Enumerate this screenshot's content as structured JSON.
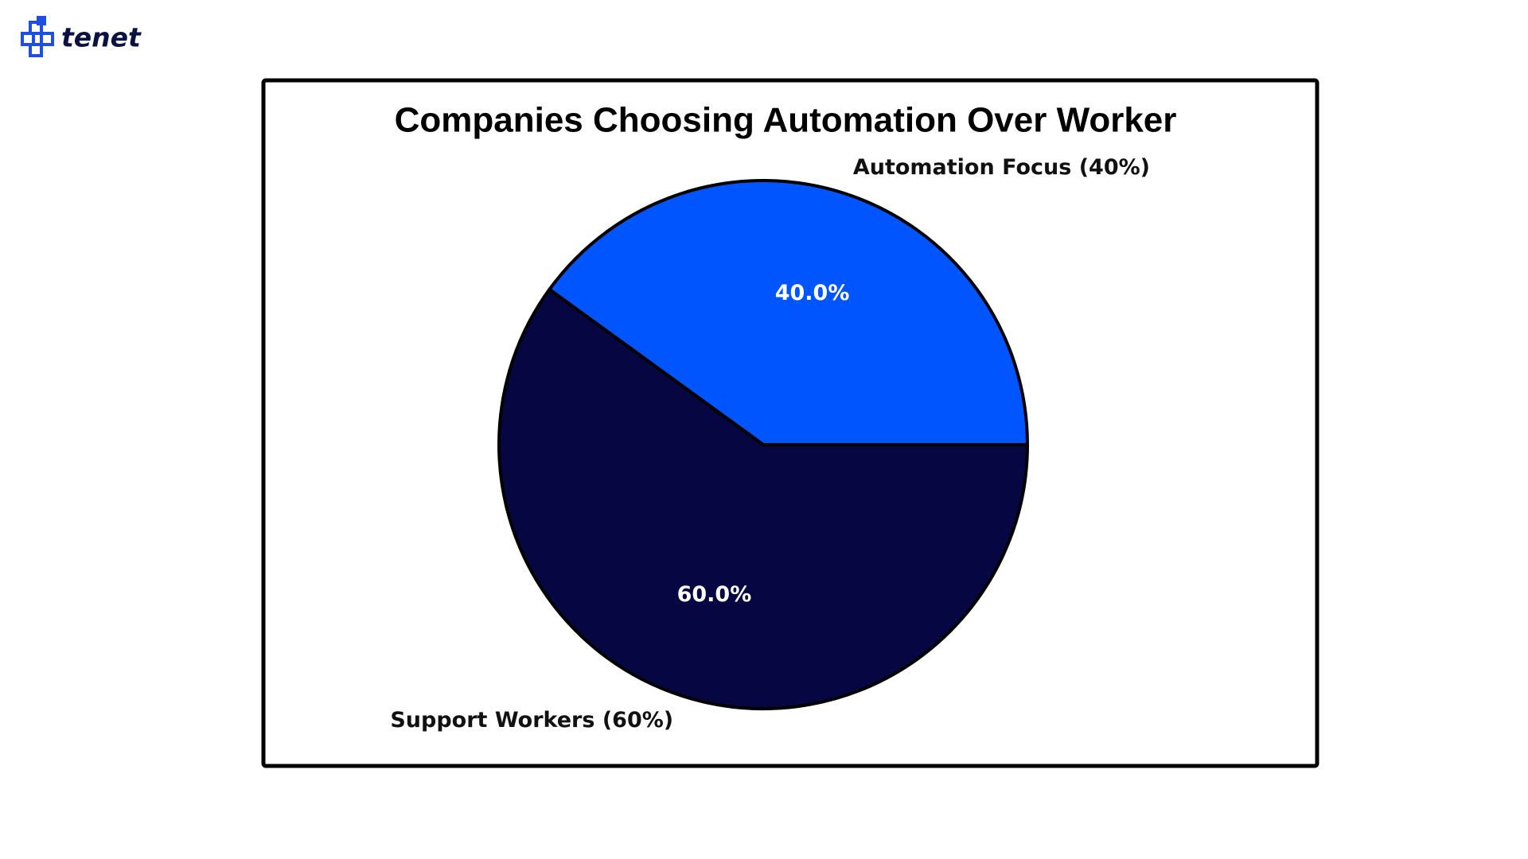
{
  "brand": "tenet",
  "chart_data": {
    "type": "pie",
    "title": "Companies Choosing Automation Over Worker",
    "categories": [
      "Automation Focus (40%)",
      "Support Workers (60%)"
    ],
    "values": [
      40,
      60
    ],
    "value_labels": [
      "40.0%",
      "60.0%"
    ],
    "colors": [
      "#0055ff",
      "#060642"
    ]
  }
}
